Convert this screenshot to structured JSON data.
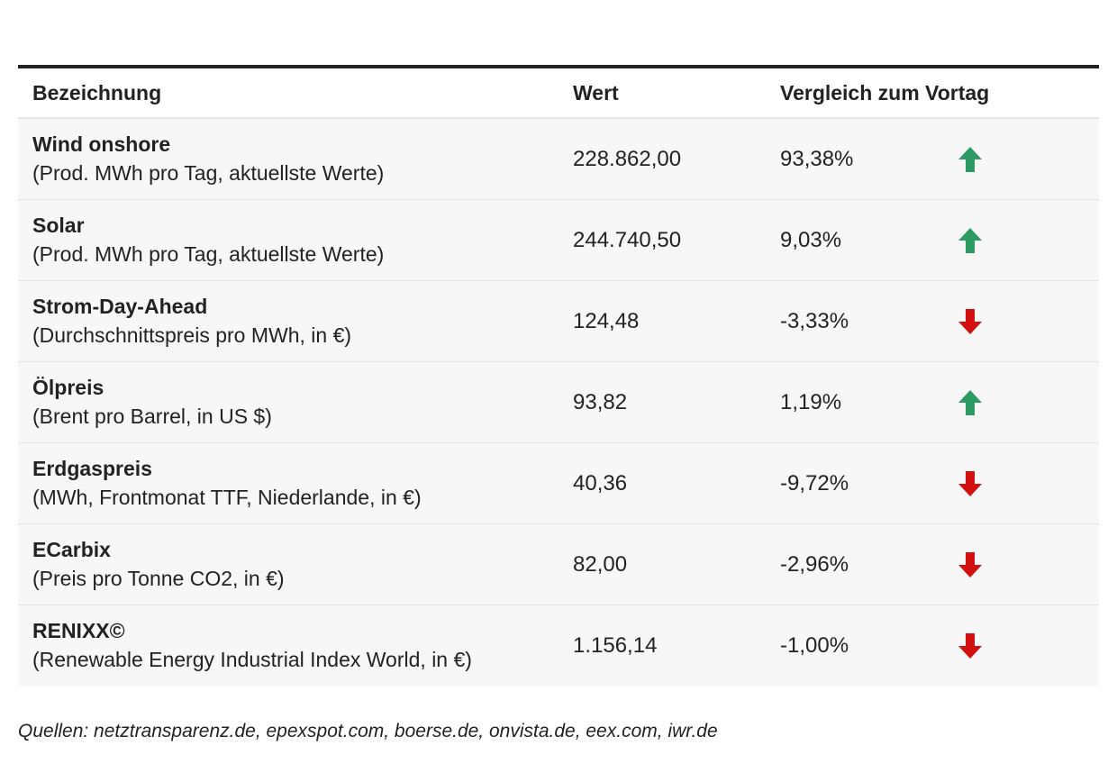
{
  "table": {
    "headers": {
      "name": "Bezeichnung",
      "value": "Wert",
      "change": "Vergleich zum Vortag"
    },
    "rows": [
      {
        "title": "Wind onshore",
        "subtitle": "(Prod. MWh pro Tag, aktuellste Werte)",
        "value": "228.862,00",
        "change": "93,38%",
        "direction": "up"
      },
      {
        "title": "Solar",
        "subtitle": "(Prod. MWh pro Tag, aktuellste Werte)",
        "value": "244.740,50",
        "change": "9,03%",
        "direction": "up"
      },
      {
        "title": "Strom-Day-Ahead",
        "subtitle": "(Durchschnittspreis pro MWh, in €)",
        "value": "124,48",
        "change": "-3,33%",
        "direction": "down"
      },
      {
        "title": "Ölpreis",
        "subtitle": "(Brent pro Barrel, in US $)",
        "value": "93,82",
        "change": "1,19%",
        "direction": "up"
      },
      {
        "title": "Erdgaspreis",
        "subtitle": "(MWh, Frontmonat TTF, Niederlande, in €)",
        "value": "40,36",
        "change": "-9,72%",
        "direction": "down"
      },
      {
        "title": "ECarbix",
        "subtitle": "(Preis pro Tonne CO2, in €)",
        "value": "82,00",
        "change": "-2,96%",
        "direction": "down"
      },
      {
        "title": "RENIXX©",
        "subtitle": "(Renewable Energy Industrial Index World, in €)",
        "value": "1.156,14",
        "change": "-1,00%",
        "direction": "down"
      }
    ]
  },
  "source": "Quellen: netztransparenz.de, epexspot.com, boerse.de, onvista.de, eex.com, iwr.de",
  "colors": {
    "up": "#2e9a63",
    "down": "#d21010",
    "row_background": "#f7f7f7",
    "rule": "#222222"
  },
  "icons": {
    "up": "arrow-up-icon",
    "down": "arrow-down-icon"
  }
}
